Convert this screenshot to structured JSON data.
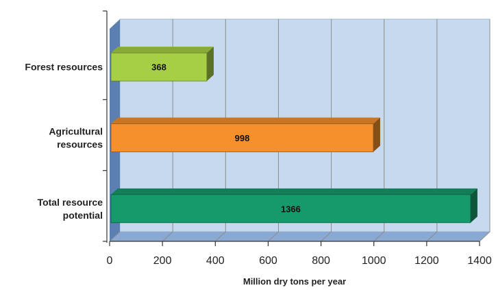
{
  "chart_data": {
    "type": "bar",
    "orientation": "horizontal",
    "style": "3d",
    "categories": [
      "Forest resources",
      "Agricultural resources",
      "Total resource potential"
    ],
    "category_lines": [
      [
        "Forest resources"
      ],
      [
        "Agricultural",
        "resources"
      ],
      [
        "Total resource",
        "potential"
      ]
    ],
    "values": [
      368,
      998,
      1366
    ],
    "value_labels": [
      "368",
      "998",
      "1366"
    ],
    "bar_colors": [
      "#a6cf45",
      "#f5902c",
      "#179a6b"
    ],
    "xlabel": "Million dry tons per year",
    "ylabel": "",
    "title": "",
    "xlim": [
      0,
      1400
    ],
    "xticks": [
      0,
      200,
      400,
      600,
      800,
      1000,
      1200,
      1400
    ],
    "xtick_labels": [
      "0",
      "200",
      "400",
      "600",
      "800",
      "1000",
      "1200",
      "1400"
    ],
    "grid": true,
    "legend": "none",
    "wall_color": "#c6d9ee",
    "side_wall_color": "#5b7fb0",
    "floor_color": "#8aa9d2"
  }
}
